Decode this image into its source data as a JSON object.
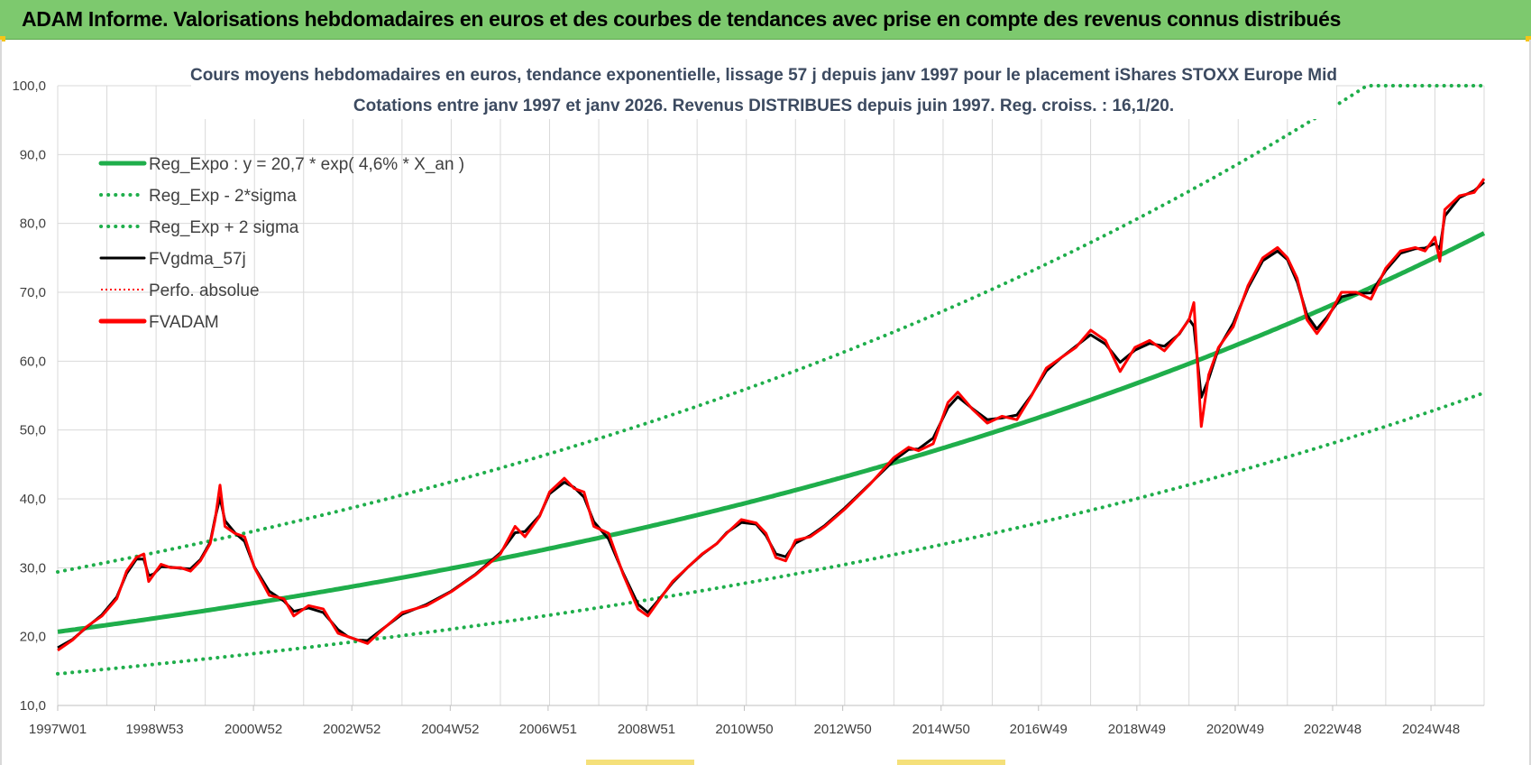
{
  "header": {
    "title": "ADAM Informe. Valorisations hebdomadaires en euros et des courbes de tendances avec prise en compte des revenus connus distribués"
  },
  "colors": {
    "banner": "#7dc96e",
    "reg": "#1fae4b",
    "fv": "#000000",
    "adam": "#ff0000",
    "perfo": "#ff0000"
  },
  "chart_data": {
    "type": "line",
    "title_line1": "Cours moyens hebdomadaires en euros, tendance exponentielle, lissage 57 j depuis janv 1997 pour le placement iShares STOXX Europe Mid",
    "title_line2": "Cotations entre janv 1997 et janv 2026. Revenus DISTRIBUES depuis juin 1997. Reg. croiss. : 16,1/20.",
    "y_ticks": [
      "100,0",
      "90,0",
      "80,0",
      "70,0",
      "60,0",
      "50,0",
      "40,0",
      "30,0",
      "20,0",
      "10,0"
    ],
    "ylim": [
      10,
      100
    ],
    "xlim": [
      1997.0,
      2026.0
    ],
    "x_ticks": [
      {
        "t": 1997.0,
        "label": "1997W01"
      },
      {
        "t": 1998.97,
        "label": "1998W53"
      },
      {
        "t": 2000.98,
        "label": "2000W52"
      },
      {
        "t": 2002.98,
        "label": "2002W52"
      },
      {
        "t": 2004.98,
        "label": "2004W52"
      },
      {
        "t": 2006.97,
        "label": "2006W51"
      },
      {
        "t": 2008.97,
        "label": "2008W51"
      },
      {
        "t": 2010.96,
        "label": "2010W50"
      },
      {
        "t": 2012.96,
        "label": "2012W50"
      },
      {
        "t": 2014.96,
        "label": "2014W50"
      },
      {
        "t": 2016.94,
        "label": "2016W49"
      },
      {
        "t": 2018.94,
        "label": "2018W49"
      },
      {
        "t": 2020.94,
        "label": "2020W49"
      },
      {
        "t": 2022.92,
        "label": "2022W48"
      },
      {
        "t": 2024.92,
        "label": "2024W48"
      }
    ],
    "legend": [
      {
        "key": "reg",
        "label": "Reg_Expo : y = 20,7 * exp( 4,6% *  X_an )",
        "style": "solid-thick",
        "color": "#1fae4b"
      },
      {
        "key": "lower",
        "label": "Reg_Exp - 2*sigma",
        "style": "dotted",
        "color": "#1fae4b"
      },
      {
        "key": "upper",
        "label": "Reg_Exp + 2 sigma",
        "style": "dotted",
        "color": "#1fae4b"
      },
      {
        "key": "fv",
        "label": "FVgdma_57j",
        "style": "solid",
        "color": "#000000"
      },
      {
        "key": "perfo",
        "label": "Perfo. absolue",
        "style": "dotted-thin",
        "color": "#ff0000"
      },
      {
        "key": "adam",
        "label": "FVADAM",
        "style": "solid-thick",
        "color": "#ff0000"
      }
    ],
    "regression": {
      "a": 20.7,
      "rate": 0.046,
      "lower_factor": 0.705,
      "upper_factor": 1.42,
      "cap": 100
    },
    "series_fvadam": {
      "name": "FVADAM",
      "x": [
        1997.0,
        1997.3,
        1997.6,
        1997.9,
        1998.2,
        1998.4,
        1998.6,
        1998.75,
        1998.85,
        1998.95,
        1999.1,
        1999.3,
        1999.5,
        1999.7,
        1999.9,
        2000.1,
        2000.2,
        2000.3,
        2000.4,
        2000.6,
        2000.8,
        2001.0,
        2001.3,
        2001.6,
        2001.8,
        2002.1,
        2002.4,
        2002.7,
        2002.9,
        2003.1,
        2003.3,
        2003.6,
        2004.0,
        2004.5,
        2005.0,
        2005.5,
        2006.0,
        2006.3,
        2006.5,
        2006.8,
        2007.0,
        2007.3,
        2007.5,
        2007.7,
        2007.9,
        2008.2,
        2008.5,
        2008.8,
        2009.0,
        2009.2,
        2009.5,
        2009.8,
        2010.1,
        2010.4,
        2010.6,
        2010.9,
        2011.2,
        2011.4,
        2011.6,
        2011.8,
        2012.0,
        2012.3,
        2012.6,
        2013.0,
        2013.5,
        2014.0,
        2014.3,
        2014.5,
        2014.8,
        2015.1,
        2015.3,
        2015.6,
        2015.9,
        2016.2,
        2016.5,
        2016.8,
        2017.1,
        2017.4,
        2017.7,
        2018.0,
        2018.3,
        2018.6,
        2018.9,
        2019.2,
        2019.5,
        2019.8,
        2020.0,
        2020.1,
        2020.25,
        2020.4,
        2020.6,
        2020.9,
        2021.2,
        2021.5,
        2021.8,
        2022.0,
        2022.2,
        2022.4,
        2022.6,
        2022.8,
        2023.1,
        2023.4,
        2023.7,
        2024.0,
        2024.3,
        2024.6,
        2024.8,
        2025.0,
        2025.1,
        2025.2,
        2025.5,
        2025.8,
        2026.0
      ],
      "y": [
        18.0,
        19.5,
        21.5,
        23.0,
        25.5,
        29.5,
        31.5,
        32.0,
        28.0,
        29.0,
        30.5,
        30.0,
        30.0,
        29.5,
        31.0,
        33.5,
        37.0,
        42.0,
        36.0,
        35.0,
        34.5,
        30.0,
        26.0,
        25.5,
        23.0,
        24.5,
        24.0,
        20.5,
        20.0,
        19.5,
        19.0,
        21.0,
        23.5,
        24.5,
        26.5,
        29.0,
        32.0,
        36.0,
        34.5,
        37.5,
        41.0,
        43.0,
        41.5,
        41.0,
        36.0,
        35.0,
        29.0,
        24.0,
        23.0,
        25.0,
        28.0,
        30.0,
        32.0,
        33.5,
        35.0,
        37.0,
        36.5,
        35.0,
        31.5,
        31.0,
        34.0,
        34.5,
        36.0,
        38.5,
        42.0,
        46.0,
        47.5,
        47.0,
        48.0,
        54.0,
        55.5,
        53.0,
        51.0,
        52.0,
        51.5,
        55.0,
        59.0,
        60.5,
        62.0,
        64.5,
        63.0,
        58.5,
        62.0,
        63.0,
        61.5,
        64.0,
        66.0,
        68.5,
        50.5,
        58.0,
        62.0,
        65.0,
        71.0,
        75.0,
        76.5,
        75.0,
        72.0,
        66.0,
        64.0,
        66.0,
        70.0,
        70.0,
        69.0,
        73.5,
        76.0,
        76.5,
        76.0,
        78.0,
        74.5,
        82.0,
        84.0,
        84.5,
        86.5
      ]
    }
  }
}
